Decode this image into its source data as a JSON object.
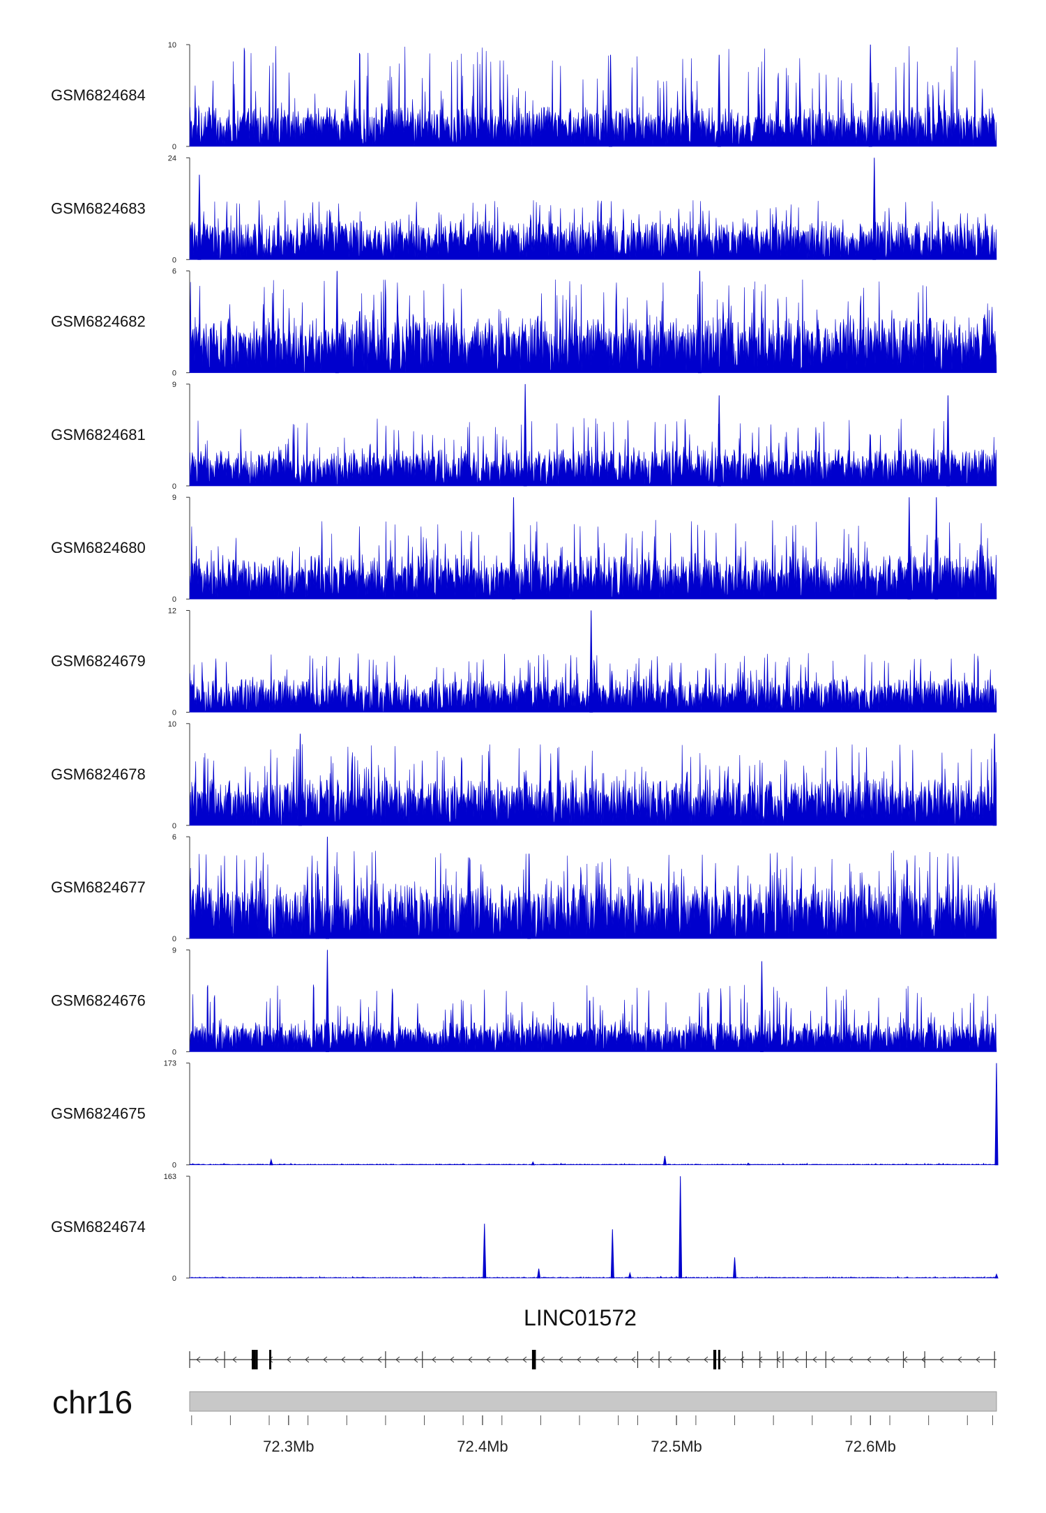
{
  "chart_data": {
    "type": "area",
    "title": "",
    "track_color": "#0000cd",
    "tracks": [
      {
        "name": "GSM6824684",
        "ymax": 10,
        "ymin": 0,
        "typical": 3,
        "spike_max": 10,
        "peaks": [
          {
            "x": 72.466,
            "v": 9
          },
          {
            "x": 72.522,
            "v": 9
          },
          {
            "x": 72.6,
            "v": 10
          }
        ]
      },
      {
        "name": "GSM6824683",
        "ymax": 24,
        "ymin": 0,
        "typical": 7,
        "spike_max": 14,
        "peaks": [
          {
            "x": 72.254,
            "v": 20
          },
          {
            "x": 72.602,
            "v": 24
          }
        ]
      },
      {
        "name": "GSM6824682",
        "ymax": 6,
        "ymin": 0,
        "typical": 2.5,
        "spike_max": 5.5,
        "peaks": [
          {
            "x": 72.325,
            "v": 6
          },
          {
            "x": 72.512,
            "v": 6
          }
        ]
      },
      {
        "name": "GSM6824681",
        "ymax": 9,
        "ymin": 0,
        "typical": 2.5,
        "spike_max": 6,
        "peaks": [
          {
            "x": 72.422,
            "v": 9
          },
          {
            "x": 72.522,
            "v": 8
          },
          {
            "x": 72.64,
            "v": 8
          }
        ]
      },
      {
        "name": "GSM6824680",
        "ymax": 9,
        "ymin": 0,
        "typical": 3,
        "spike_max": 7,
        "peaks": [
          {
            "x": 72.416,
            "v": 9
          },
          {
            "x": 72.62,
            "v": 9
          },
          {
            "x": 72.634,
            "v": 9
          }
        ]
      },
      {
        "name": "GSM6824679",
        "ymax": 12,
        "ymin": 0,
        "typical": 3,
        "spike_max": 7,
        "peaks": [
          {
            "x": 72.456,
            "v": 12
          }
        ]
      },
      {
        "name": "GSM6824678",
        "ymax": 10,
        "ymin": 0,
        "typical": 3.5,
        "spike_max": 8,
        "peaks": [
          {
            "x": 72.306,
            "v": 9
          },
          {
            "x": 72.664,
            "v": 9
          }
        ]
      },
      {
        "name": "GSM6824677",
        "ymax": 6,
        "ymin": 0,
        "typical": 2.5,
        "spike_max": 5.2,
        "peaks": [
          {
            "x": 72.32,
            "v": 6
          },
          {
            "x": 72.424,
            "v": 5
          }
        ]
      },
      {
        "name": "GSM6824676",
        "ymax": 9,
        "ymin": 0,
        "typical": 2,
        "spike_max": 6,
        "peaks": [
          {
            "x": 72.32,
            "v": 9
          },
          {
            "x": 72.544,
            "v": 8
          }
        ]
      },
      {
        "name": "GSM6824675",
        "ymax": 173,
        "ymin": 0,
        "typical": 1.5,
        "spike_max": 3,
        "peaks": [
          {
            "x": 72.291,
            "v": 9
          },
          {
            "x": 72.426,
            "v": 5
          },
          {
            "x": 72.494,
            "v": 15
          },
          {
            "x": 72.537,
            "v": 3
          },
          {
            "x": 72.665,
            "v": 173
          }
        ]
      },
      {
        "name": "GSM6824674",
        "ymax": 163,
        "ymin": 0,
        "typical": 1.5,
        "spike_max": 3,
        "peaks": [
          {
            "x": 72.401,
            "v": 87
          },
          {
            "x": 72.429,
            "v": 15
          },
          {
            "x": 72.467,
            "v": 78
          },
          {
            "x": 72.476,
            "v": 8
          },
          {
            "x": 72.502,
            "v": 163
          },
          {
            "x": 72.53,
            "v": 33
          },
          {
            "x": 72.665,
            "v": 6
          }
        ]
      }
    ],
    "xlim": [
      72.249,
      72.665
    ],
    "xunit": "Mb",
    "xticks": [
      72.3,
      72.4,
      72.5,
      72.6
    ],
    "xtick_labels": [
      "72.3Mb",
      "72.4Mb",
      "72.5Mb",
      "72.6Mb"
    ],
    "minor_ticks": [
      72.25,
      72.27,
      72.29,
      72.31,
      72.33,
      72.35,
      72.37,
      72.39,
      72.41,
      72.43,
      72.45,
      72.47,
      72.48,
      72.51,
      72.53,
      72.55,
      72.57,
      72.59,
      72.61,
      72.63,
      72.65,
      72.663
    ],
    "gene": {
      "name": "LINC01572",
      "strand": "-",
      "start": 72.249,
      "end": 72.665,
      "exons": [
        {
          "start": 72.281,
          "end": 72.283,
          "thick": true
        },
        {
          "start": 72.283,
          "end": 72.284,
          "thick": true
        },
        {
          "start": 72.29,
          "end": 72.291,
          "thick": true
        },
        {
          "start": 72.4255,
          "end": 72.4275,
          "thick": true
        },
        {
          "start": 72.519,
          "end": 72.5205,
          "thick": true
        },
        {
          "start": 72.5215,
          "end": 72.5225,
          "thick": true
        }
      ],
      "intron_breaks": [
        72.267,
        72.35,
        72.369,
        72.48,
        72.491,
        72.534,
        72.543,
        72.552,
        72.555,
        72.567,
        72.577,
        72.617,
        72.628,
        72.664
      ]
    },
    "chromosome": "chr16"
  }
}
